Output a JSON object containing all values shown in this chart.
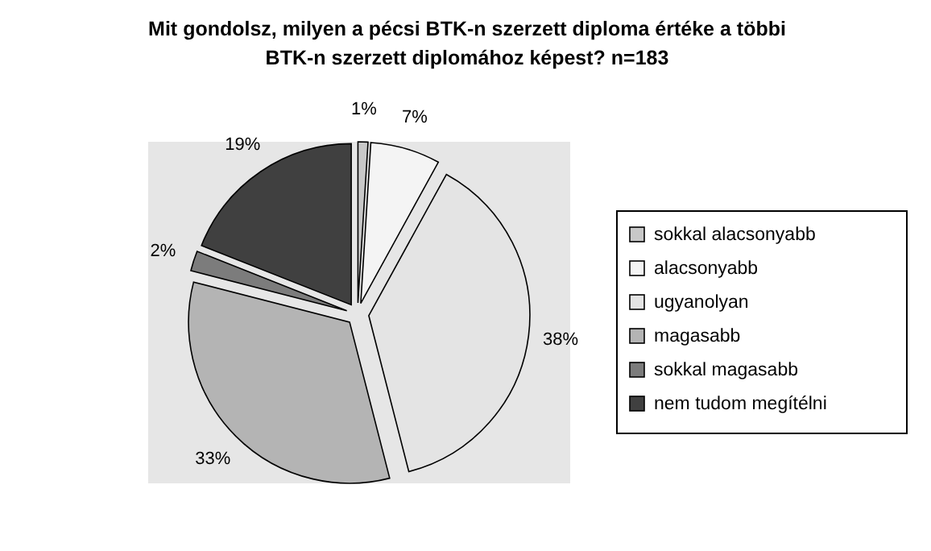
{
  "chart_data": {
    "type": "pie",
    "title": "Mit gondolsz, milyen a pécsi BTK-n szerzett diploma értéke a többi BTK-n szerzett diplomához képest? n=183",
    "categories": [
      "sokkal alacsonyabb",
      "alacsonyabb",
      "ugyanolyan",
      "magasabb",
      "sokkal magasabb",
      "nem tudom megítélni"
    ],
    "values": [
      1,
      7,
      38,
      33,
      2,
      19
    ],
    "value_labels": [
      "1%",
      "7%",
      "38%",
      "33%",
      "2%",
      "19%"
    ],
    "colors": [
      "#c8c8c8",
      "#f4f4f4",
      "#e4e4e4",
      "#b4b4b4",
      "#7c7c7c",
      "#404040"
    ],
    "legend": "right"
  }
}
